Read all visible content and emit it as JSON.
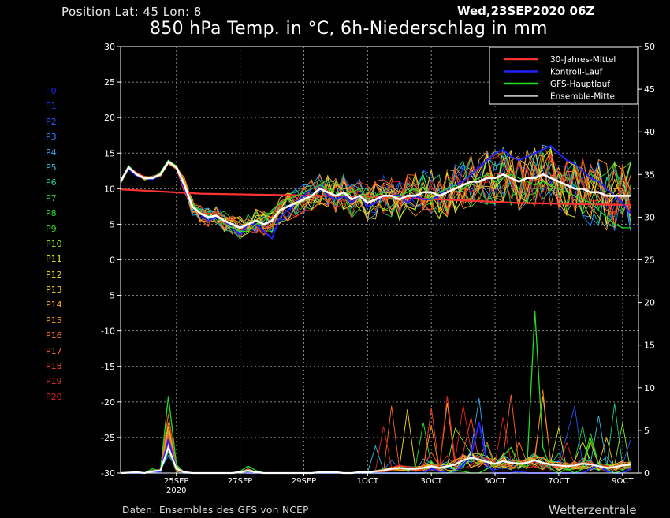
{
  "header": {
    "position": "Position   Lat: 45 Lon: 8",
    "date": "Wed,23SEP2020 06Z",
    "title": "850 hPa Temp. in °C, 6h-Niederschlag in mm"
  },
  "footer": {
    "source": "Daten: Ensembles des GFS von NCEP",
    "brand": "Wetterzentrale"
  },
  "members": [
    {
      "label": "P0",
      "color": "#2222ee"
    },
    {
      "label": "P1",
      "color": "#2233ff"
    },
    {
      "label": "P2",
      "color": "#2255ff"
    },
    {
      "label": "P3",
      "color": "#2288ff"
    },
    {
      "label": "P4",
      "color": "#33aaff"
    },
    {
      "label": "P5",
      "color": "#33bbdd"
    },
    {
      "label": "P6",
      "color": "#22cc88"
    },
    {
      "label": "P7",
      "color": "#22cc55"
    },
    {
      "label": "P8",
      "color": "#22dd33"
    },
    {
      "label": "P9",
      "color": "#44dd22"
    },
    {
      "label": "P10",
      "color": "#88ee22"
    },
    {
      "label": "P11",
      "color": "#ddee22"
    },
    {
      "label": "P12",
      "color": "#ffdd22"
    },
    {
      "label": "P13",
      "color": "#ffcc22"
    },
    {
      "label": "P14",
      "color": "#ffaa22"
    },
    {
      "label": "P15",
      "color": "#ff9922"
    },
    {
      "label": "P16",
      "color": "#ff7722"
    },
    {
      "label": "P17",
      "color": "#ff6622"
    },
    {
      "label": "P18",
      "color": "#ff4422"
    },
    {
      "label": "P19",
      "color": "#ee3322"
    },
    {
      "label": "P20",
      "color": "#dd2222"
    }
  ],
  "chart_data": {
    "type": "line",
    "x_unit": "forecast hours from 23SEP2020 06Z",
    "xlim": [
      0,
      390
    ],
    "ylim_left": [
      -30,
      30
    ],
    "ylim_right": [
      0,
      50
    ],
    "yticks_left": [
      30,
      25,
      20,
      15,
      10,
      5,
      0,
      -5,
      -10,
      -15,
      -20,
      -25,
      -30
    ],
    "yticks_right": [
      50,
      45,
      40,
      35,
      30,
      25,
      20,
      15,
      10,
      5,
      0
    ],
    "xticks": [
      {
        "x": 42,
        "label": "25SEP",
        "sub": "2020"
      },
      {
        "x": 90,
        "label": "27SEP"
      },
      {
        "x": 138,
        "label": "29SEP"
      },
      {
        "x": 186,
        "label": "1OCT"
      },
      {
        "x": 234,
        "label": "3OCT"
      },
      {
        "x": 282,
        "label": "5OCT"
      },
      {
        "x": 330,
        "label": "7OCT"
      },
      {
        "x": 378,
        "label": "9OCT"
      }
    ],
    "grid": true,
    "legend_position": "top-right",
    "legend": [
      {
        "name": "30-Jahres-Mittel",
        "color": "#ff3333"
      },
      {
        "name": "Kontroll-Lauf",
        "color": "#2222ff"
      },
      {
        "name": "GFS-Hauptlauf",
        "color": "#22dd22"
      },
      {
        "name": "Ensemble-Mittel",
        "color": "#bbbbbb"
      }
    ],
    "temp_hours": [
      0,
      6,
      12,
      18,
      24,
      30,
      36,
      42,
      48,
      54,
      60,
      66,
      72,
      78,
      84,
      90,
      96,
      102,
      108,
      114,
      120,
      126,
      132,
      138,
      144,
      150,
      156,
      162,
      168,
      174,
      180,
      186,
      192,
      198,
      204,
      210,
      216,
      222,
      228,
      234,
      240,
      246,
      252,
      258,
      264,
      270,
      276,
      282,
      288,
      294,
      300,
      306,
      312,
      318,
      324,
      330,
      336,
      342,
      348,
      354,
      360,
      366,
      372,
      378,
      384
    ],
    "climate_mean": [
      [
        0,
        9.9
      ],
      [
        60,
        9.3
      ],
      [
        120,
        9.1
      ],
      [
        180,
        8.9
      ],
      [
        240,
        8.5
      ],
      [
        300,
        8.0
      ],
      [
        384,
        7.7
      ]
    ],
    "ensemble_mean": [
      11,
      13,
      12,
      11.5,
      11.5,
      12,
      13.8,
      13,
      10.5,
      7.5,
      6.5,
      6,
      6.2,
      5.5,
      5,
      4.5,
      5,
      5.5,
      5,
      5.5,
      7,
      7.5,
      8,
      8.5,
      9,
      10,
      9.5,
      9,
      9.5,
      8.5,
      9,
      8,
      8.5,
      9,
      9,
      8.5,
      9,
      9,
      9.5,
      9.5,
      9,
      9.5,
      10,
      10.5,
      11,
      11,
      11.5,
      11.5,
      12,
      11.5,
      11,
      11.5,
      11.5,
      12,
      11.5,
      11,
      10.5,
      10,
      10,
      9.5,
      9.5,
      9,
      9,
      9,
      9
    ],
    "control_run": [
      11,
      12.8,
      11.8,
      11.5,
      11.3,
      12,
      13.8,
      13,
      10,
      7.5,
      6.5,
      5.5,
      6,
      5.5,
      4.5,
      3.5,
      5,
      5,
      4,
      3,
      6,
      7,
      8,
      9,
      10,
      10.5,
      9,
      8.5,
      9,
      8,
      9,
      7.5,
      8,
      9,
      9,
      9,
      8,
      9,
      8.5,
      8.5,
      9,
      10,
      10.5,
      11,
      12,
      13,
      14,
      15,
      15.5,
      14.5,
      14,
      14.5,
      15,
      15.5,
      16,
      15,
      14,
      13.5,
      12.5,
      11.5,
      11,
      10,
      9,
      8,
      6.5
    ],
    "gfs_main": [
      11,
      13.2,
      12,
      11.6,
      11.4,
      12.3,
      14,
      13.2,
      10.5,
      8,
      6.6,
      5.8,
      6.2,
      5,
      4.5,
      4,
      4,
      5,
      5.5,
      7,
      8,
      8.5,
      9,
      9.5,
      10,
      10.5,
      10,
      9.5,
      9,
      9.5,
      10,
      8.5,
      9,
      9.5,
      8.5,
      9,
      9.5,
      10,
      9,
      8.5,
      9.5,
      10,
      10.5,
      10,
      11,
      11.5,
      12,
      11,
      11.5,
      12,
      11.5,
      11,
      10.5,
      11,
      10.5,
      10,
      9.5,
      9,
      8.5,
      8,
      7,
      6,
      5,
      4.5,
      4.5
    ],
    "precip_hours": [
      0,
      6,
      12,
      18,
      24,
      30,
      36,
      42,
      48,
      54,
      60,
      66,
      72,
      78,
      84,
      90,
      96,
      102,
      108,
      114,
      120,
      126,
      132,
      138,
      144,
      150,
      156,
      162,
      168,
      174,
      180,
      186,
      192,
      198,
      204,
      210,
      216,
      222,
      228,
      234,
      240,
      246,
      252,
      258,
      264,
      270,
      276,
      282,
      288,
      294,
      300,
      306,
      312,
      318,
      324,
      330,
      336,
      342,
      348,
      354,
      360,
      366,
      372,
      378,
      384
    ],
    "precip_control": [
      0,
      0,
      0,
      0,
      0.2,
      0.1,
      4,
      0.5,
      0,
      0,
      0,
      0,
      0,
      0,
      0,
      0.2,
      0,
      0,
      0,
      0,
      0,
      0,
      0,
      0,
      0,
      0,
      0,
      0,
      0,
      0,
      0,
      0,
      0,
      0,
      0,
      0,
      0,
      0,
      0,
      0.5,
      0.2,
      0,
      0.2,
      1,
      2,
      6,
      1,
      0,
      0,
      0,
      0.2,
      0,
      0,
      0,
      0,
      0,
      0,
      0,
      0,
      0.5,
      1,
      0.2,
      0,
      0,
      0.5
    ],
    "precip_gfs": [
      0,
      0,
      0,
      0,
      0.5,
      0.2,
      9,
      1,
      0,
      0,
      0,
      0,
      0,
      0,
      0,
      0.2,
      0.8,
      0.3,
      0,
      0,
      0,
      0,
      0,
      0,
      0,
      0,
      0,
      0,
      0,
      0,
      0,
      0,
      0,
      0,
      0,
      0,
      0,
      0,
      0,
      0,
      0,
      0,
      0.3,
      0.2,
      0,
      0,
      0.5,
      1,
      2,
      3,
      1,
      0.5,
      19,
      3,
      0.5,
      0,
      0.5,
      0,
      0.5,
      4,
      1,
      0.5,
      0,
      0.3,
      1
    ],
    "precip_mean": [
      0,
      0.05,
      0.1,
      0,
      0.2,
      0.3,
      3,
      0.5,
      0.1,
      0,
      0,
      0,
      0,
      0,
      0,
      0.1,
      0.3,
      0.1,
      0,
      0,
      0,
      0,
      0,
      0,
      0,
      0.1,
      0.1,
      0.1,
      0,
      0,
      0.1,
      0.1,
      0.2,
      0.3,
      0.5,
      0.6,
      0.5,
      0.5,
      0.6,
      0.8,
      0.6,
      0.8,
      1,
      1.5,
      1.8,
      1.6,
      1.3,
      1.1,
      1.4,
      1.2,
      1.1,
      1.2,
      1.5,
      1.2,
      1.0,
      0.9,
      0.8,
      0.9,
      1.1,
      1.0,
      0.8,
      0.6,
      0.7,
      0.9,
      1.0
    ]
  }
}
